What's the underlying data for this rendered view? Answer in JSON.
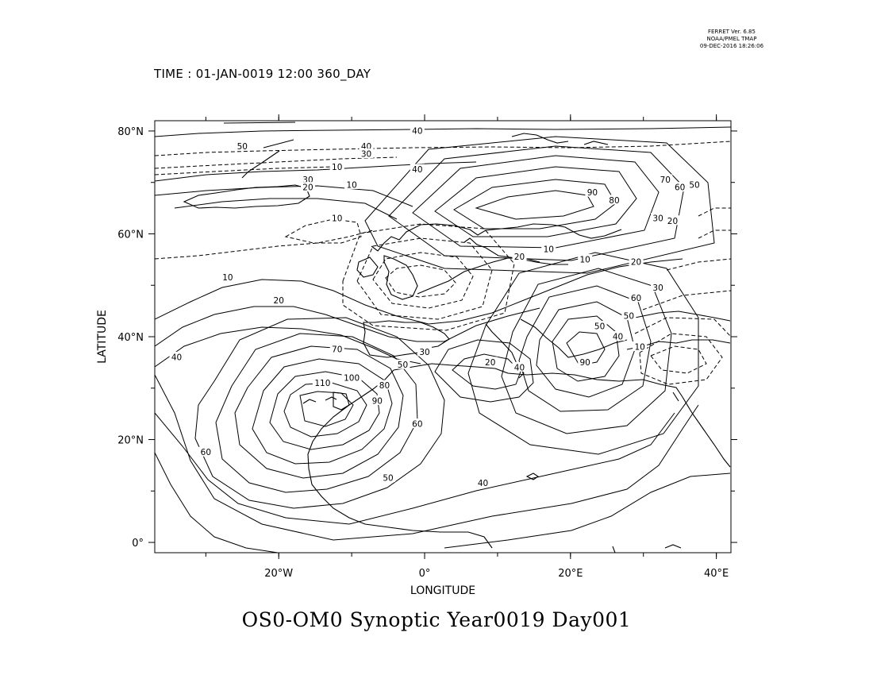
{
  "header": {
    "software": "FERRET Ver. 6.85",
    "organization": "NOAA/PMEL TMAP",
    "timestamp": "09-DEC-2016 18:26:06"
  },
  "time_label": "TIME : 01-JAN-0019 12:00 360_DAY",
  "title": "OS0-OM0 Synoptic Year0019 Day001",
  "map": {
    "x_axis_label": "LONGITUDE",
    "y_axis_label": "LATITUDE",
    "lon_range": [
      -37,
      42
    ],
    "lat_range": [
      -2,
      82
    ],
    "x_ticks": [
      {
        "value": -20,
        "label": "20°W"
      },
      {
        "value": 0,
        "label": "0°"
      },
      {
        "value": 20,
        "label": "20°E"
      },
      {
        "value": 40,
        "label": "40°E"
      }
    ],
    "y_ticks": [
      {
        "value": 0,
        "label": "0°"
      },
      {
        "value": 20,
        "label": "20°N"
      },
      {
        "value": 40,
        "label": "40°N"
      },
      {
        "value": 60,
        "label": "60°N"
      },
      {
        "value": 80,
        "label": "80°N"
      }
    ],
    "contour_style": "solid lines positive, dashed lines negative",
    "contour_labels": [
      {
        "text": "40",
        "lon": -1,
        "lat": 80
      },
      {
        "text": "50",
        "lon": -25,
        "lat": 77
      },
      {
        "text": "40",
        "lon": -8,
        "lat": 77
      },
      {
        "text": "30",
        "lon": -8,
        "lat": 75.5
      },
      {
        "text": "10",
        "lon": -12,
        "lat": 73
      },
      {
        "text": "40",
        "lon": -1,
        "lat": 72.5
      },
      {
        "text": "30",
        "lon": -16,
        "lat": 70.5
      },
      {
        "text": "20",
        "lon": -16,
        "lat": 69
      },
      {
        "text": "10",
        "lon": -10,
        "lat": 69.5
      },
      {
        "text": "10",
        "lon": -12,
        "lat": 63
      },
      {
        "text": "90",
        "lon": 23,
        "lat": 68
      },
      {
        "text": "80",
        "lon": 26,
        "lat": 66.5
      },
      {
        "text": "70",
        "lon": 33,
        "lat": 70.5
      },
      {
        "text": "60",
        "lon": 35,
        "lat": 69
      },
      {
        "text": "50",
        "lon": 37,
        "lat": 69.5
      },
      {
        "text": "30",
        "lon": 32,
        "lat": 63
      },
      {
        "text": "20",
        "lon": 34,
        "lat": 62.5
      },
      {
        "text": "10",
        "lon": 17,
        "lat": 57
      },
      {
        "text": "20",
        "lon": 13,
        "lat": 55.5
      },
      {
        "text": "10",
        "lon": 22,
        "lat": 55
      },
      {
        "text": "20",
        "lon": 29,
        "lat": 54.5
      },
      {
        "text": "30",
        "lon": 32,
        "lat": 49.5
      },
      {
        "text": "10",
        "lon": -27,
        "lat": 51.5
      },
      {
        "text": "20",
        "lon": -20,
        "lat": 47
      },
      {
        "text": "40",
        "lon": -34,
        "lat": 36
      },
      {
        "text": "70",
        "lon": -12,
        "lat": 37.5
      },
      {
        "text": "50",
        "lon": -3,
        "lat": 34.5
      },
      {
        "text": "30",
        "lon": 0,
        "lat": 37
      },
      {
        "text": "110",
        "lon": -14,
        "lat": 31
      },
      {
        "text": "100",
        "lon": -10,
        "lat": 32
      },
      {
        "text": "80",
        "lon": -5.5,
        "lat": 30.5
      },
      {
        "text": "90",
        "lon": -6.5,
        "lat": 27.5
      },
      {
        "text": "60",
        "lon": -1,
        "lat": 23
      },
      {
        "text": "60",
        "lon": -30,
        "lat": 17.5
      },
      {
        "text": "50",
        "lon": -5,
        "lat": 12.5
      },
      {
        "text": "40",
        "lon": 8,
        "lat": 11.5
      },
      {
        "text": "20",
        "lon": 9,
        "lat": 35
      },
      {
        "text": "40",
        "lon": 13,
        "lat": 34
      },
      {
        "text": "50",
        "lon": 24,
        "lat": 42
      },
      {
        "text": "90",
        "lon": 22,
        "lat": 35
      },
      {
        "text": "60",
        "lon": 29,
        "lat": 47.5
      },
      {
        "text": "50",
        "lon": 28,
        "lat": 44
      },
      {
        "text": "40",
        "lon": 26.5,
        "lat": 40
      },
      {
        "text": "10",
        "lon": 29.5,
        "lat": 38
      }
    ]
  }
}
